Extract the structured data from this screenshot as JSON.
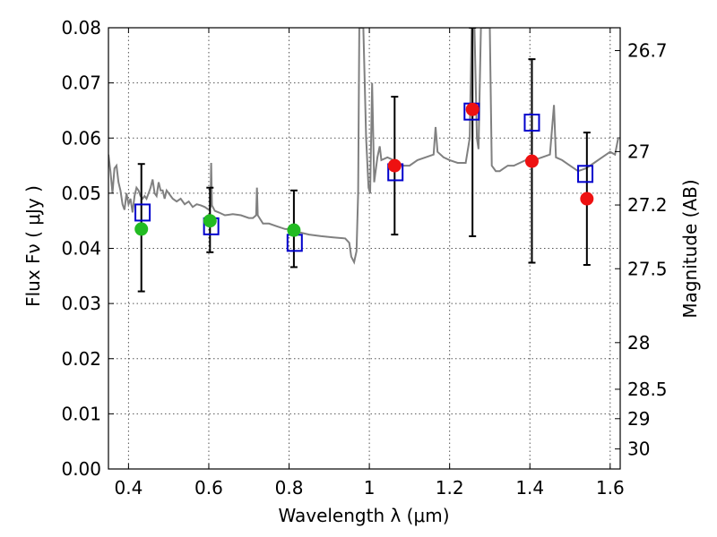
{
  "chart_data": {
    "type": "scatter",
    "xlabel": "Wavelength  λ (μm)",
    "ylabel": "Flux  Fν  ( μJy )",
    "ylabel_right": "Magnitude (AB)",
    "xlim": [
      0.35,
      1.625
    ],
    "ylim": [
      0.0,
      0.08
    ],
    "x_ticks": [
      {
        "value": 0.4,
        "label": "0.4"
      },
      {
        "value": 0.6,
        "label": "0.6"
      },
      {
        "value": 0.8,
        "label": "0.8"
      },
      {
        "value": 1.0,
        "label": "1"
      },
      {
        "value": 1.2,
        "label": "1.2"
      },
      {
        "value": 1.4,
        "label": "1.4"
      },
      {
        "value": 1.6,
        "label": "1.6"
      }
    ],
    "y_ticks": [
      {
        "value": 0.0,
        "label": "0.00"
      },
      {
        "value": 0.01,
        "label": "0.01"
      },
      {
        "value": 0.02,
        "label": "0.02"
      },
      {
        "value": 0.03,
        "label": "0.03"
      },
      {
        "value": 0.04,
        "label": "0.04"
      },
      {
        "value": 0.05,
        "label": "0.05"
      },
      {
        "value": 0.06,
        "label": "0.06"
      },
      {
        "value": 0.07,
        "label": "0.07"
      },
      {
        "value": 0.08,
        "label": "0.08"
      }
    ],
    "right_ticks": [
      {
        "mag": 26.7,
        "label": "26.7"
      },
      {
        "mag": 27.0,
        "label": "27"
      },
      {
        "mag": 27.2,
        "label": "27.2"
      },
      {
        "mag": 27.5,
        "label": "27.5"
      },
      {
        "mag": 28.0,
        "label": "28"
      },
      {
        "mag": 28.5,
        "label": "28.5"
      },
      {
        "mag": 29.0,
        "label": "29"
      },
      {
        "mag": 30.0,
        "label": "30"
      }
    ],
    "grid": true,
    "colors": {
      "template": "#808080",
      "model": "#0000cc",
      "optical": "#22bb22",
      "nir": "#ee1111",
      "errorbar": "#000000"
    },
    "template_spectrum": [
      [
        0.35,
        0.057
      ],
      [
        0.355,
        0.054
      ],
      [
        0.36,
        0.05
      ],
      [
        0.365,
        0.0545
      ],
      [
        0.37,
        0.055
      ],
      [
        0.375,
        0.052
      ],
      [
        0.38,
        0.0505
      ],
      [
        0.385,
        0.048
      ],
      [
        0.39,
        0.047
      ],
      [
        0.395,
        0.05
      ],
      [
        0.4,
        0.048
      ],
      [
        0.405,
        0.049
      ],
      [
        0.41,
        0.0465
      ],
      [
        0.415,
        0.0495
      ],
      [
        0.42,
        0.051
      ],
      [
        0.425,
        0.0505
      ],
      [
        0.43,
        0.0495
      ],
      [
        0.435,
        0.049
      ],
      [
        0.44,
        0.0495
      ],
      [
        0.445,
        0.049
      ],
      [
        0.45,
        0.05
      ],
      [
        0.455,
        0.051
      ],
      [
        0.46,
        0.0525
      ],
      [
        0.465,
        0.05
      ],
      [
        0.47,
        0.0495
      ],
      [
        0.475,
        0.052
      ],
      [
        0.48,
        0.0505
      ],
      [
        0.485,
        0.0505
      ],
      [
        0.49,
        0.049
      ],
      [
        0.495,
        0.0505
      ],
      [
        0.5,
        0.05
      ],
      [
        0.51,
        0.049
      ],
      [
        0.52,
        0.0485
      ],
      [
        0.53,
        0.049
      ],
      [
        0.54,
        0.048
      ],
      [
        0.55,
        0.0485
      ],
      [
        0.56,
        0.0475
      ],
      [
        0.57,
        0.048
      ],
      [
        0.58,
        0.0478
      ],
      [
        0.59,
        0.0475
      ],
      [
        0.6,
        0.047
      ],
      [
        0.604,
        0.0475
      ],
      [
        0.606,
        0.0555
      ],
      [
        0.608,
        0.0478
      ],
      [
        0.615,
        0.0468
      ],
      [
        0.625,
        0.0465
      ],
      [
        0.64,
        0.046
      ],
      [
        0.66,
        0.0462
      ],
      [
        0.68,
        0.046
      ],
      [
        0.7,
        0.0455
      ],
      [
        0.71,
        0.0455
      ],
      [
        0.718,
        0.046
      ],
      [
        0.72,
        0.051
      ],
      [
        0.722,
        0.046
      ],
      [
        0.735,
        0.0445
      ],
      [
        0.75,
        0.0445
      ],
      [
        0.77,
        0.044
      ],
      [
        0.79,
        0.0435
      ],
      [
        0.8,
        0.0435
      ],
      [
        0.82,
        0.043
      ],
      [
        0.85,
        0.0425
      ],
      [
        0.88,
        0.0422
      ],
      [
        0.91,
        0.042
      ],
      [
        0.94,
        0.0418
      ],
      [
        0.95,
        0.041
      ],
      [
        0.955,
        0.0385
      ],
      [
        0.962,
        0.0375
      ],
      [
        0.968,
        0.0395
      ],
      [
        0.972,
        0.05
      ],
      [
        0.975,
        0.08
      ],
      [
        0.985,
        0.08
      ],
      [
        0.992,
        0.06
      ],
      [
        0.998,
        0.051
      ],
      [
        1.002,
        0.05
      ],
      [
        1.007,
        0.07
      ],
      [
        1.012,
        0.052
      ],
      [
        1.02,
        0.0565
      ],
      [
        1.026,
        0.0585
      ],
      [
        1.03,
        0.056
      ],
      [
        1.045,
        0.0565
      ],
      [
        1.06,
        0.056
      ],
      [
        1.08,
        0.055
      ],
      [
        1.1,
        0.055
      ],
      [
        1.12,
        0.056
      ],
      [
        1.14,
        0.0565
      ],
      [
        1.16,
        0.057
      ],
      [
        1.165,
        0.062
      ],
      [
        1.17,
        0.0575
      ],
      [
        1.185,
        0.0565
      ],
      [
        1.2,
        0.056
      ],
      [
        1.22,
        0.0555
      ],
      [
        1.24,
        0.0555
      ],
      [
        1.25,
        0.06
      ],
      [
        1.255,
        0.08
      ],
      [
        1.262,
        0.08
      ],
      [
        1.268,
        0.06
      ],
      [
        1.272,
        0.058
      ],
      [
        1.278,
        0.08
      ],
      [
        1.3,
        0.08
      ],
      [
        1.305,
        0.055
      ],
      [
        1.315,
        0.054
      ],
      [
        1.325,
        0.054
      ],
      [
        1.335,
        0.0545
      ],
      [
        1.345,
        0.055
      ],
      [
        1.36,
        0.055
      ],
      [
        1.375,
        0.0555
      ],
      [
        1.39,
        0.056
      ],
      [
        1.41,
        0.056
      ],
      [
        1.43,
        0.0565
      ],
      [
        1.45,
        0.057
      ],
      [
        1.46,
        0.066
      ],
      [
        1.465,
        0.0565
      ],
      [
        1.48,
        0.056
      ],
      [
        1.5,
        0.055
      ],
      [
        1.52,
        0.054
      ],
      [
        1.54,
        0.0545
      ],
      [
        1.56,
        0.0555
      ],
      [
        1.58,
        0.0565
      ],
      [
        1.6,
        0.0575
      ],
      [
        1.612,
        0.057
      ],
      [
        1.62,
        0.06
      ],
      [
        1.625,
        0.06
      ]
    ],
    "model_points": [
      {
        "x": 0.435,
        "y": 0.0465
      },
      {
        "x": 0.606,
        "y": 0.044
      },
      {
        "x": 0.814,
        "y": 0.041
      },
      {
        "x": 1.065,
        "y": 0.0538
      },
      {
        "x": 1.255,
        "y": 0.0648
      },
      {
        "x": 1.405,
        "y": 0.0628
      },
      {
        "x": 1.538,
        "y": 0.0535
      }
    ],
    "optical_points": [
      {
        "x": 0.432,
        "y": 0.0435,
        "yerr_low": 0.0322,
        "yerr_high": 0.0553
      },
      {
        "x": 0.603,
        "y": 0.045,
        "yerr_low": 0.0393,
        "yerr_high": 0.051
      },
      {
        "x": 0.812,
        "y": 0.0433,
        "yerr_low": 0.0366,
        "yerr_high": 0.0505
      }
    ],
    "nir_points": [
      {
        "x": 1.063,
        "y": 0.055,
        "yerr_low": 0.0425,
        "yerr_high": 0.0675
      },
      {
        "x": 1.257,
        "y": 0.0652,
        "yerr_low": 0.0422,
        "yerr_high": 0.08
      },
      {
        "x": 1.405,
        "y": 0.0558,
        "yerr_low": 0.0374,
        "yerr_high": 0.0743
      },
      {
        "x": 1.542,
        "y": 0.049,
        "yerr_low": 0.037,
        "yerr_high": 0.061
      }
    ]
  }
}
